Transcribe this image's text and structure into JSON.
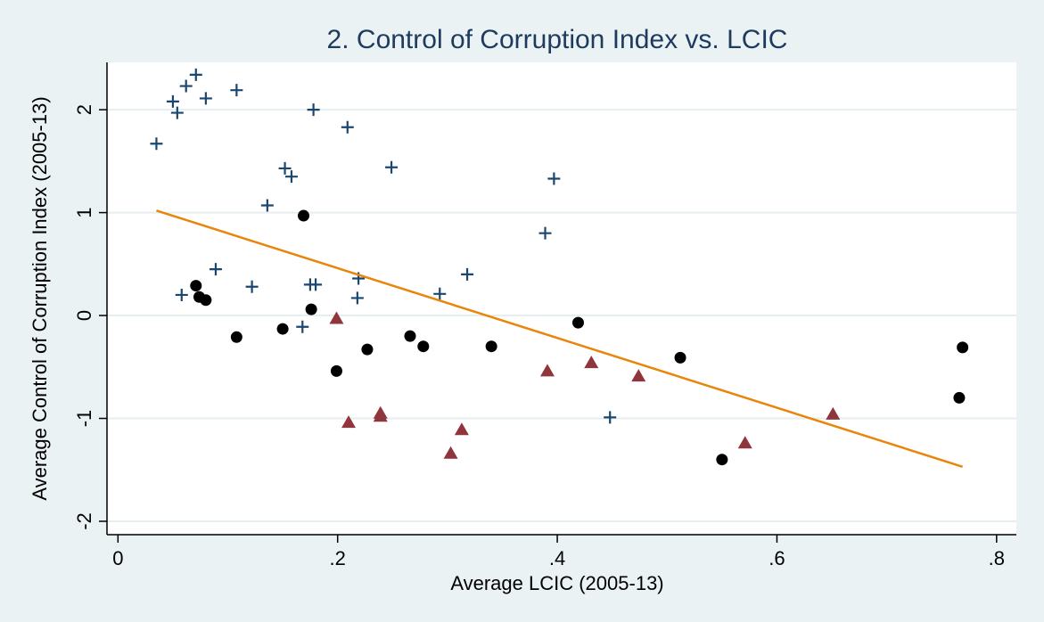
{
  "chart_data": {
    "type": "scatter",
    "title": "2. Control of Corruption Index vs. LCIC",
    "x_label": "Average LCIC (2005-13)",
    "y_label": "Average Control of Corruption Index (2005-13)",
    "xlim": [
      -0.01,
      0.818
    ],
    "ylim": [
      -2.13,
      2.46
    ],
    "xticks": [
      0,
      {
        "value": 0.2,
        "label": ".2"
      },
      {
        "value": 0.4,
        "label": ".4"
      },
      {
        "value": 0.6,
        "label": ".6"
      },
      {
        "value": 0.8,
        "label": ".8"
      }
    ],
    "yticks": [
      -2,
      -1,
      0,
      1,
      2
    ],
    "grid": true,
    "series": [
      {
        "color": "#1a476f",
        "marker": "plus",
        "x": [
          0.035,
          0.05,
          0.054,
          0.062,
          0.071,
          0.08,
          0.108,
          0.178,
          0.209,
          0.152,
          0.158,
          0.249,
          0.397,
          0.136,
          0.389,
          0.089,
          0.058,
          0.122,
          0.175,
          0.18,
          0.219,
          0.218,
          0.293,
          0.318,
          0.168,
          0.448
        ],
        "values": [
          1.67,
          2.08,
          1.97,
          2.23,
          2.34,
          2.11,
          2.19,
          2.0,
          1.83,
          1.43,
          1.35,
          1.44,
          1.33,
          1.07,
          0.8,
          0.45,
          0.2,
          0.28,
          0.3,
          0.3,
          0.36,
          0.17,
          0.21,
          0.4,
          -0.11,
          -0.99
        ]
      },
      {
        "color": "#000000",
        "marker": "circle",
        "x": [
          0.071,
          0.074,
          0.08,
          0.169,
          0.108,
          0.15,
          0.176,
          0.199,
          0.227,
          0.266,
          0.278,
          0.34,
          0.419,
          0.512,
          0.55,
          0.766,
          0.769
        ],
        "values": [
          0.29,
          0.18,
          0.15,
          0.97,
          -0.21,
          -0.13,
          0.06,
          -0.54,
          -0.33,
          -0.2,
          -0.3,
          -0.3,
          -0.07,
          -0.41,
          -1.4,
          -0.8,
          -0.31
        ]
      },
      {
        "color": "#90353b",
        "marker": "triangle",
        "x": [
          0.199,
          0.21,
          0.239,
          0.239,
          0.313,
          0.303,
          0.391,
          0.431,
          0.474,
          0.571,
          0.651
        ],
        "values": [
          -0.03,
          -1.04,
          -0.95,
          -0.98,
          -1.11,
          -1.34,
          -0.54,
          -0.46,
          -0.59,
          -1.24,
          -0.96
        ]
      },
      {
        "color": "#e8860c",
        "marker": "line",
        "x": [
          0.035,
          0.769
        ],
        "values": [
          1.02,
          -1.47
        ]
      }
    ]
  }
}
